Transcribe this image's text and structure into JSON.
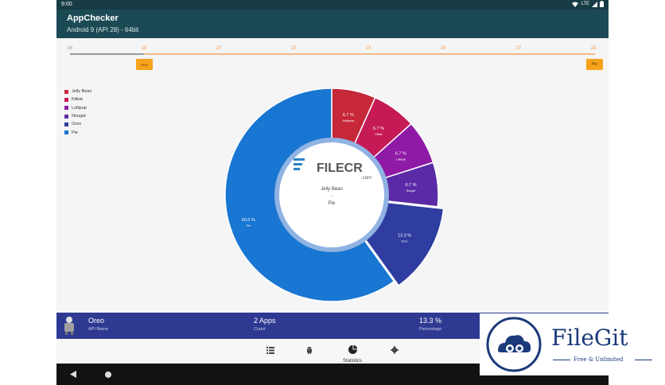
{
  "status": {
    "time": "9:00",
    "network": "LTE"
  },
  "app": {
    "title": "AppChecker",
    "subtitle": "Android 9 (API 28) - 64bit"
  },
  "timeline": {
    "ticks": [
      "16",
      "18",
      "20",
      "22",
      "23",
      "26",
      "27",
      "28"
    ],
    "left_marker": "Oreo",
    "right_marker": "Pie"
  },
  "legend": [
    {
      "label": "Jelly Bean",
      "color": "#c62839"
    },
    {
      "label": "Kitkat",
      "color": "#c61a56"
    },
    {
      "label": "Lollipop",
      "color": "#8e1aa5"
    },
    {
      "label": "Nougat",
      "color": "#5b2aa6"
    },
    {
      "label": "Oreo",
      "color": "#2f3da0"
    },
    {
      "label": "Pie",
      "color": "#1976d2"
    }
  ],
  "chart_data": {
    "type": "pie",
    "categories": [
      "Jelly Bean",
      "Kitkat",
      "Lollipop",
      "Nougat",
      "Oreo",
      "Pie"
    ],
    "values": [
      6.7,
      6.7,
      6.7,
      6.7,
      13.3,
      60.0
    ],
    "data_labels": [
      "6.7 %",
      "6.7 %",
      "6.7 %",
      "6.7 %",
      "13.3 %",
      "60.0 %"
    ],
    "slice_labels": [
      "Jellybean",
      "Kitkat",
      "Lollipop",
      "Nougat",
      "Oreo",
      "Pie"
    ],
    "center_text": [
      "Jelly Bean",
      "-",
      "Pie"
    ],
    "highlighted": "Oreo"
  },
  "watermark_center": {
    "brand": "FILECR",
    "suffix": ".com"
  },
  "bottom_info": {
    "name_value": "Oreo",
    "name_label": "API Name",
    "count_value": "2 Apps",
    "count_label": "Count",
    "percent_value": "13.3 %",
    "percent_label": "Percentage"
  },
  "tabs": {
    "statistics_label": "Statistics"
  },
  "watermark": {
    "brand": "FileGit",
    "tagline": "Free & Unlimited"
  }
}
